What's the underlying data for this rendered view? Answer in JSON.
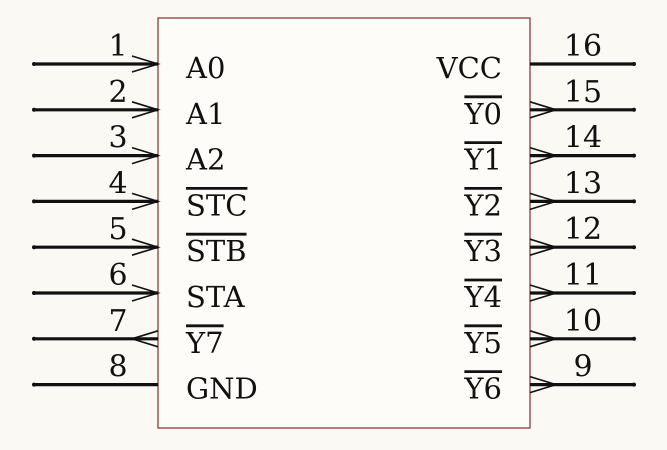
{
  "component": {
    "body_outline_color": "#8b2a2a",
    "body_fill_color": "#fdfcf8",
    "pin_color": "#111111",
    "background_color": "#fbf9f4",
    "left_pins": [
      {
        "number": "1",
        "name": "A0",
        "overbar": false,
        "symbol": "input-arrow"
      },
      {
        "number": "2",
        "name": "A1",
        "overbar": false,
        "symbol": "input-arrow"
      },
      {
        "number": "3",
        "name": "A2",
        "overbar": false,
        "symbol": "input-arrow"
      },
      {
        "number": "4",
        "name": "STC",
        "overbar": true,
        "symbol": "input-arrow"
      },
      {
        "number": "5",
        "name": "STB",
        "overbar": true,
        "symbol": "input-arrow"
      },
      {
        "number": "6",
        "name": "STA",
        "overbar": false,
        "symbol": "input-arrow"
      },
      {
        "number": "7",
        "name": "Y7",
        "overbar": true,
        "symbol": "output-arrow"
      },
      {
        "number": "8",
        "name": "GND",
        "overbar": false,
        "symbol": "none"
      }
    ],
    "right_pins": [
      {
        "number": "16",
        "name": "VCC",
        "overbar": false,
        "symbol": "none"
      },
      {
        "number": "15",
        "name": "Y0",
        "overbar": true,
        "symbol": "output-arrow"
      },
      {
        "number": "14",
        "name": "Y1",
        "overbar": true,
        "symbol": "output-arrow"
      },
      {
        "number": "13",
        "name": "Y2",
        "overbar": true,
        "symbol": "output-arrow"
      },
      {
        "number": "12",
        "name": "Y3",
        "overbar": true,
        "symbol": "output-arrow"
      },
      {
        "number": "11",
        "name": "Y4",
        "overbar": true,
        "symbol": "output-arrow"
      },
      {
        "number": "10",
        "name": "Y5",
        "overbar": true,
        "symbol": "output-arrow"
      },
      {
        "number": "9",
        "name": "Y6",
        "overbar": true,
        "symbol": "output-arrow"
      }
    ]
  }
}
